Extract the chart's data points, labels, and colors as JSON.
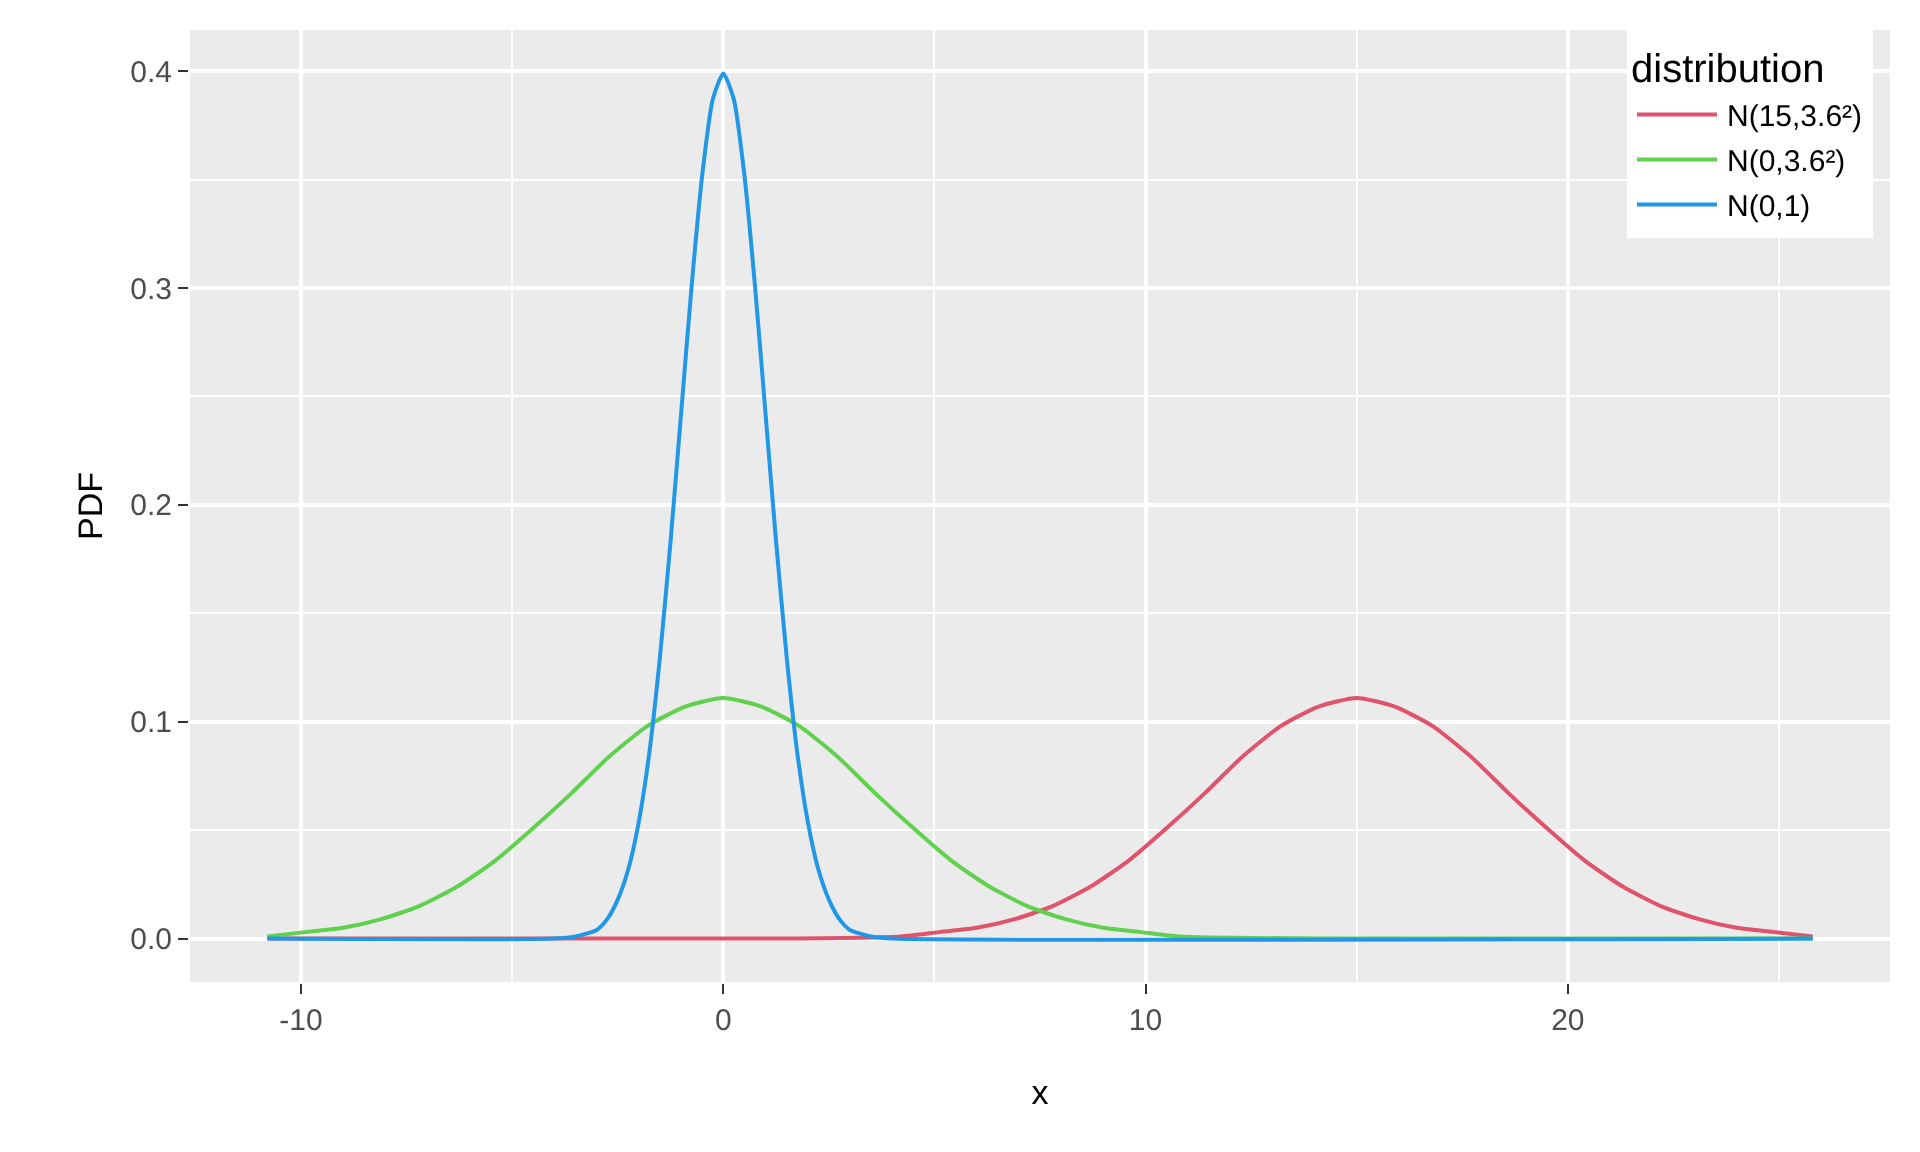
{
  "chart_data": {
    "type": "line",
    "xlabel": "x",
    "ylabel": "PDF",
    "legend_title": "distribution",
    "xlim": [
      -12.63,
      27.63
    ],
    "xticks": [
      -10,
      0,
      10,
      20
    ],
    "ylim": [
      -0.02,
      0.419
    ],
    "yticks": [
      {
        "value": 0,
        "label": "0.0"
      },
      0.1,
      0.2,
      0.3,
      0.4
    ],
    "grid": true,
    "legend": "top right",
    "line_style": "solid",
    "marker": "none",
    "series": [
      {
        "name": "N(15,3.6²)",
        "color": "#df536b",
        "x": [
          -10.8,
          1.2,
          4.2,
          5.1,
          6.0,
          6.9,
          7.8,
          8.7,
          9.6,
          10.5,
          11.4,
          12.3,
          13.2,
          14.1,
          15.0,
          15.9,
          16.8,
          17.7,
          18.6,
          19.5,
          20.4,
          21.3,
          22.2,
          23.1,
          24.0,
          24.9,
          25.8
        ],
        "values": [
          0,
          0,
          0.001,
          0.003,
          0.005,
          0.009,
          0.015,
          0.024,
          0.036,
          0.051,
          0.067,
          0.084,
          0.098,
          0.107,
          0.111,
          0.107,
          0.098,
          0.084,
          0.067,
          0.051,
          0.036,
          0.024,
          0.015,
          0.009,
          0.005,
          0.003,
          0.001
        ]
      },
      {
        "name": "N(0,3.6²)",
        "color": "#61d04f",
        "x": [
          -10.8,
          -9.9,
          -9.0,
          -8.1,
          -7.2,
          -6.3,
          -5.4,
          -4.5,
          -3.6,
          -2.7,
          -1.8,
          -0.9,
          0.0,
          0.9,
          1.8,
          2.7,
          3.6,
          4.5,
          5.4,
          6.3,
          7.2,
          8.1,
          9.0,
          9.9,
          10.8,
          14.4,
          25.8
        ],
        "values": [
          0.001,
          0.003,
          0.005,
          0.009,
          0.015,
          0.024,
          0.036,
          0.051,
          0.067,
          0.084,
          0.098,
          0.107,
          0.111,
          0.107,
          0.098,
          0.084,
          0.067,
          0.051,
          0.036,
          0.024,
          0.015,
          0.009,
          0.005,
          0.003,
          0.001,
          0,
          0
        ]
      },
      {
        "name": "N(0,1)",
        "color": "#2297e6",
        "x": [
          -10.8,
          -4.0,
          -3.5,
          -3.0,
          -2.75,
          -2.5,
          -2.25,
          -2.0,
          -1.75,
          -1.5,
          -1.25,
          -1.0,
          -0.75,
          -0.5,
          -0.25,
          0.0,
          0.25,
          0.5,
          0.75,
          1.0,
          1.25,
          1.5,
          1.75,
          2.0,
          2.25,
          2.5,
          2.75,
          3.0,
          3.5,
          4.0,
          25.8
        ],
        "values": [
          0,
          0,
          0.001,
          0.004,
          0.009,
          0.018,
          0.032,
          0.054,
          0.086,
          0.13,
          0.183,
          0.242,
          0.301,
          0.352,
          0.387,
          0.399,
          0.387,
          0.352,
          0.301,
          0.242,
          0.183,
          0.13,
          0.086,
          0.054,
          0.032,
          0.018,
          0.009,
          0.004,
          0.001,
          0,
          0
        ]
      }
    ]
  }
}
